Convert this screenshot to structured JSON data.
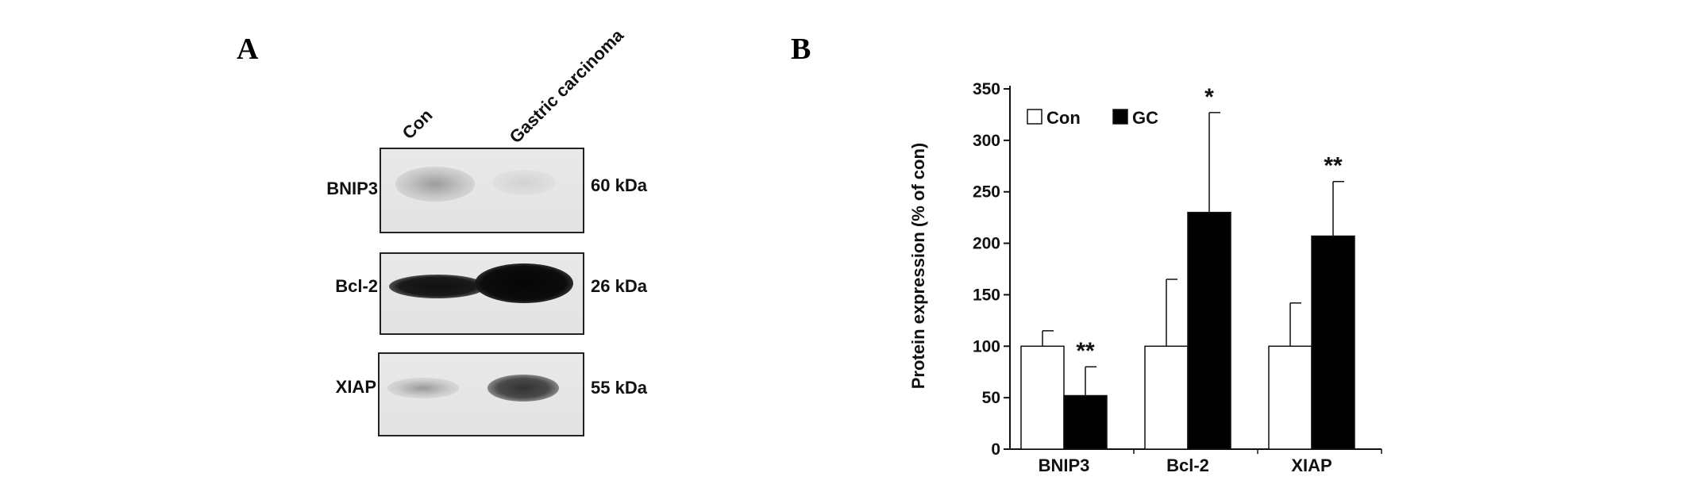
{
  "panels": {
    "a": "A",
    "b": "B"
  },
  "blot": {
    "lanes": [
      "Con",
      "Gastric carcinoma"
    ],
    "rows": [
      {
        "protein": "BNIP3",
        "size": "60 kDa"
      },
      {
        "protein": "Bcl-2",
        "size": "26 kDa"
      },
      {
        "protein": "XIAP",
        "size": "55 kDa"
      }
    ]
  },
  "chart_data": {
    "type": "bar",
    "title": "",
    "xlabel": "",
    "ylabel": "Protein expression (% of con)",
    "ylim": [
      0,
      350
    ],
    "yticks": [
      0,
      50,
      100,
      150,
      200,
      250,
      300,
      350
    ],
    "categories": [
      "BNIP3",
      "Bcl-2",
      "XIAP"
    ],
    "series": [
      {
        "name": "Con",
        "values": [
          100,
          100,
          100
        ],
        "errors": [
          15,
          65,
          42
        ],
        "color": "#ffffff"
      },
      {
        "name": "GC",
        "values": [
          52,
          230,
          207
        ],
        "errors": [
          28,
          97,
          53
        ],
        "color": "#000000"
      }
    ],
    "annotations": [
      "**",
      "*",
      "**"
    ],
    "legend_position": "top-left",
    "grid": false
  }
}
